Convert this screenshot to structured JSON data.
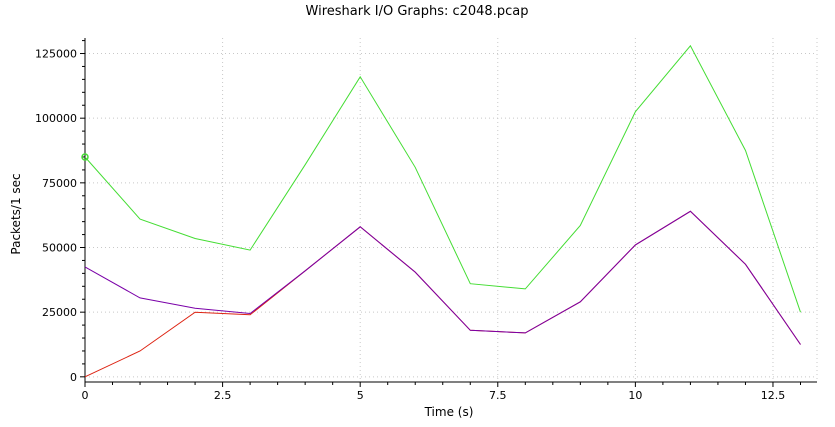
{
  "chart_data": {
    "type": "line",
    "title": "Wireshark I/O Graphs: c2048.pcap",
    "xlabel": "Time (s)",
    "ylabel": "Packets/1 sec",
    "xlim": [
      0,
      13.3
    ],
    "ylim": [
      -2000,
      131000
    ],
    "xticks": [
      0,
      2.5,
      5,
      7.5,
      10,
      12.5
    ],
    "xtick_labels": [
      "0",
      "2.5",
      "5",
      "7.5",
      "10",
      "12.5"
    ],
    "yticks": [
      0,
      25000,
      50000,
      75000,
      100000,
      125000
    ],
    "ytick_labels": [
      "0",
      "25000",
      "50000",
      "75000",
      "100000",
      "125000"
    ],
    "grid": true,
    "x": [
      0,
      1,
      2,
      3,
      4,
      5,
      6,
      7,
      8,
      9,
      10,
      11,
      12,
      13
    ],
    "series": [
      {
        "color": "#44dd33",
        "values": [
          85000,
          61000,
          53500,
          49000,
          82000,
          116000,
          81000,
          36000,
          34000,
          58500,
          102500,
          128000,
          87500,
          25000
        ],
        "marker_first": true
      },
      {
        "color": "#7a00a8",
        "values": [
          42500,
          30500,
          26500,
          24500,
          41000,
          58000,
          40500,
          18000,
          17000,
          29000,
          51000,
          64000,
          43500,
          12500
        ]
      },
      {
        "color": "#dd2211",
        "values": [
          0,
          10000,
          25000,
          24000,
          41000,
          58000,
          40500,
          18000,
          17000,
          29000,
          51000,
          64000,
          43500,
          12500
        ]
      }
    ]
  }
}
